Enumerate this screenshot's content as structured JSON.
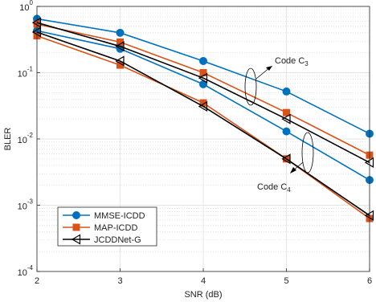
{
  "chart_data": {
    "type": "line",
    "log_y": true,
    "grid": true,
    "minor_grid": true,
    "xlabel": "SNR (dB)",
    "ylabel": "BLER",
    "x": [
      2,
      3,
      4,
      5,
      6
    ],
    "xlim": [
      2,
      6
    ],
    "xticks": [
      2,
      3,
      4,
      5,
      6
    ],
    "ylim": [
      0.0001,
      1
    ],
    "yticks": [
      {
        "value": 0.0001,
        "label": "10",
        "exponent": "-4"
      },
      {
        "value": 0.001,
        "label": "10",
        "exponent": "-3"
      },
      {
        "value": 0.01,
        "label": "10",
        "exponent": "-2"
      },
      {
        "value": 0.1,
        "label": "10",
        "exponent": "-1"
      },
      {
        "value": 1,
        "label": "10",
        "exponent": "0"
      }
    ],
    "legend": "lower left",
    "series": [
      {
        "name": "MMSE-ICDD",
        "color": "#0072BD",
        "marker": "circle",
        "values": [
          0.65,
          0.4,
          0.15,
          0.052,
          0.012
        ],
        "values_c4": [
          0.43,
          0.23,
          0.067,
          0.013,
          0.0024
        ]
      },
      {
        "name": "MAP-ICDD",
        "color": "#D95319",
        "marker": "square",
        "values": [
          0.54,
          0.29,
          0.1,
          0.025,
          0.0057
        ],
        "values_c4": [
          0.36,
          0.13,
          0.035,
          0.005,
          0.00063
        ]
      },
      {
        "name": "JCDDNet-G",
        "color": "#000000",
        "marker": "triangle-left",
        "values": [
          0.57,
          0.25,
          0.083,
          0.02,
          0.0044
        ],
        "values_c4": [
          0.41,
          0.15,
          0.031,
          0.005,
          0.0007
        ]
      }
    ],
    "annotations": [
      {
        "text": "Code C",
        "subscript": "3"
      },
      {
        "text": "Code C",
        "subscript": "4"
      }
    ]
  }
}
